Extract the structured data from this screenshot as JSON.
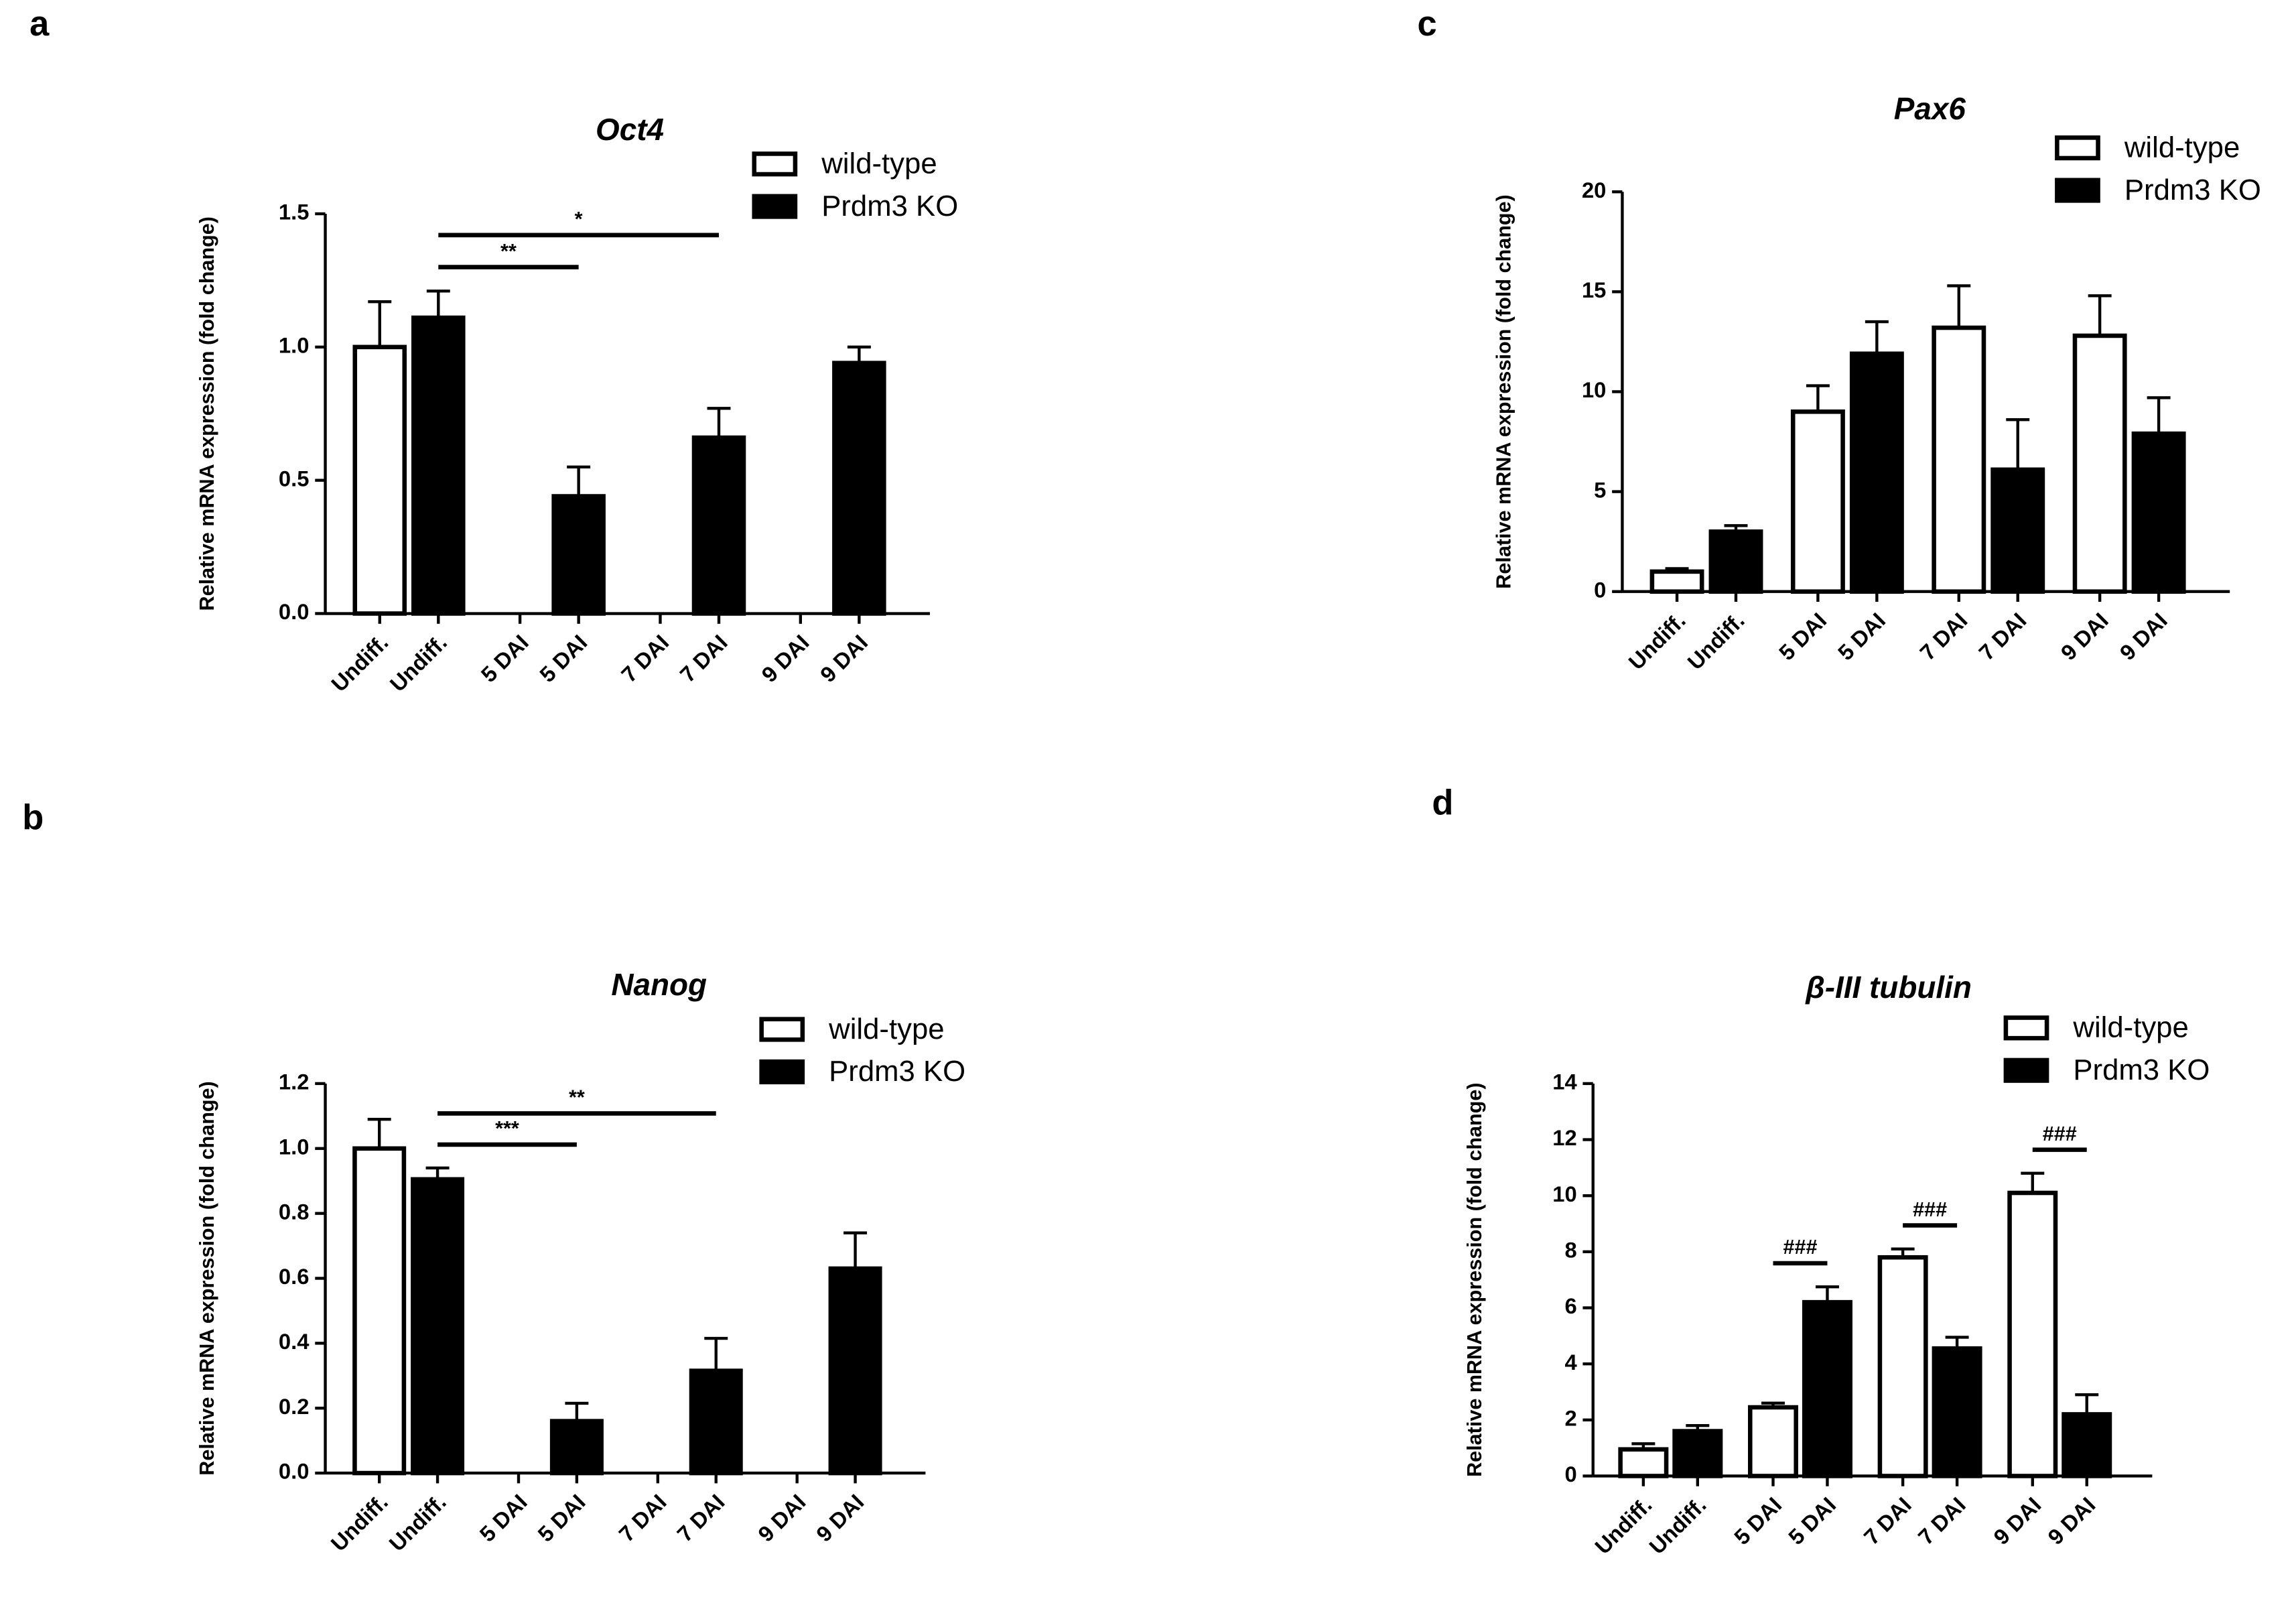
{
  "chart_data": [
    {
      "type": "bar",
      "panel": "a",
      "title": "Oct4",
      "y_label": "Relative mRNA expression (fold change)",
      "categories": [
        "Undiff.",
        "Undiff.",
        "5 DAI",
        "5 DAI",
        "7 DAI",
        "7 DAI",
        "9 DAI",
        "9 DAI"
      ],
      "series": [
        {
          "name": "wild-type",
          "color": "#ffffff",
          "values": [
            1.0,
            null,
            null,
            null,
            null,
            null,
            null,
            null
          ],
          "errors": [
            0.17,
            null,
            null,
            null,
            null,
            null,
            null,
            null
          ]
        },
        {
          "name": "Prdm3 KO",
          "color": "#000000",
          "values": [
            null,
            1.11,
            null,
            0.44,
            null,
            0.66,
            null,
            0.94
          ],
          "errors": [
            null,
            0.1,
            null,
            0.11,
            null,
            0.11,
            null,
            0.06
          ]
        }
      ],
      "ylim": [
        0,
        1.5
      ],
      "yticks": [
        {
          "value": 0,
          "label": "0.0"
        },
        {
          "value": 0.5,
          "label": "0.5"
        },
        {
          "value": 1,
          "label": "1.0"
        },
        {
          "value": 1.5,
          "label": "1.5"
        }
      ],
      "annotations": [
        {
          "text": "**",
          "from": 1,
          "to": 3
        },
        {
          "text": "*",
          "from": 1,
          "to": 5
        }
      ]
    },
    {
      "type": "bar",
      "panel": "b",
      "title": "Nanog",
      "y_label": "Relative mRNA expression (fold change)",
      "categories": [
        "Undiff.",
        "Undiff.",
        "5 DAI",
        "5 DAI",
        "7 DAI",
        "7 DAI",
        "9 DAI",
        "9 DAI"
      ],
      "series": [
        {
          "name": "wild-type",
          "color": "#ffffff",
          "values": [
            1.0,
            null,
            null,
            null,
            null,
            null,
            null,
            null
          ],
          "errors": [
            0.09,
            null,
            null,
            null,
            null,
            null,
            null,
            null
          ]
        },
        {
          "name": "Prdm3 KO",
          "color": "#000000",
          "values": [
            null,
            0.905,
            null,
            0.16,
            null,
            0.315,
            null,
            0.63
          ],
          "errors": [
            null,
            0.035,
            null,
            0.055,
            null,
            0.1,
            null,
            0.11
          ]
        }
      ],
      "ylim": [
        0,
        1.2
      ],
      "yticks": [
        {
          "value": 0,
          "label": "0.0"
        },
        {
          "value": 0.2,
          "label": "0.2"
        },
        {
          "value": 0.4,
          "label": "0.4"
        },
        {
          "value": 0.6,
          "label": "0.6"
        },
        {
          "value": 0.8,
          "label": "0.8"
        },
        {
          "value": 1,
          "label": "1.0"
        },
        {
          "value": 1.2,
          "label": "1.2"
        }
      ],
      "annotations": [
        {
          "text": "***",
          "from": 1,
          "to": 3
        },
        {
          "text": "**",
          "from": 1,
          "to": 5
        }
      ]
    },
    {
      "type": "bar",
      "panel": "c",
      "title": "Pax6",
      "y_label": "Relative mRNA expression (fold change)",
      "categories": [
        "Undiff.",
        "Undiff.",
        "5 DAI",
        "5 DAI",
        "7 DAI",
        "7 DAI",
        "9 DAI",
        "9 DAI"
      ],
      "series": [
        {
          "name": "wild-type",
          "color": "#ffffff",
          "values": [
            1.0,
            null,
            9.0,
            null,
            13.2,
            null,
            12.8,
            null
          ],
          "errors": [
            0.15,
            null,
            1.3,
            null,
            2.1,
            null,
            2.0,
            null
          ]
        },
        {
          "name": "Prdm3 KO",
          "color": "#000000",
          "values": [
            null,
            3.0,
            null,
            11.9,
            null,
            6.1,
            null,
            7.9
          ],
          "errors": [
            null,
            0.3,
            null,
            1.6,
            null,
            2.5,
            null,
            1.8
          ]
        }
      ],
      "ylim": [
        0,
        20
      ],
      "yticks": [
        0,
        5,
        10,
        15,
        20
      ],
      "annotations": []
    },
    {
      "type": "bar",
      "panel": "d",
      "title": "β-III tubulin",
      "y_label": "Relative mRNA expression (fold change)",
      "categories": [
        "Undiff.",
        "Undiff.",
        "5 DAI",
        "5 DAI",
        "7 DAI",
        "7 DAI",
        "9 DAI",
        "9 DAI"
      ],
      "series": [
        {
          "name": "wild-type",
          "color": "#ffffff",
          "values": [
            0.95,
            null,
            2.45,
            null,
            7.8,
            null,
            10.1,
            null
          ],
          "errors": [
            0.2,
            null,
            0.15,
            null,
            0.3,
            null,
            0.7,
            null
          ]
        },
        {
          "name": "Prdm3 KO",
          "color": "#000000",
          "values": [
            null,
            1.6,
            null,
            6.2,
            null,
            4.55,
            null,
            2.2
          ],
          "errors": [
            null,
            0.2,
            null,
            0.55,
            null,
            0.4,
            null,
            0.7
          ]
        }
      ],
      "ylim": [
        0,
        14
      ],
      "yticks": [
        0,
        2,
        4,
        6,
        8,
        10,
        12,
        14
      ],
      "annotations": [
        {
          "text": "###",
          "from": 2,
          "to": 3
        },
        {
          "text": "###",
          "from": 4,
          "to": 5
        },
        {
          "text": "###",
          "from": 6,
          "to": 7
        }
      ]
    }
  ]
}
